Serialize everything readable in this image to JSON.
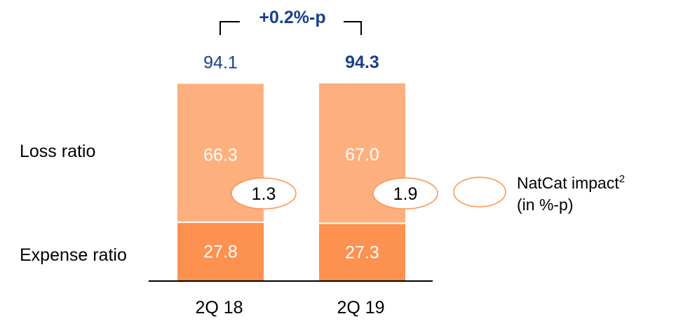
{
  "colors": {
    "loss": "#fdb07e",
    "expense": "#fd9150",
    "accent": "#1a3f8f",
    "ellipse_stroke": "#fd9150"
  },
  "legend": {
    "natcat_line1": "NatCat impact",
    "natcat_sup": "2",
    "natcat_line2": "(in %-p)"
  },
  "chart_data": {
    "type": "bar",
    "stacked": true,
    "categories": [
      "2Q 18",
      "2Q 19"
    ],
    "series": [
      {
        "name": "Expense ratio",
        "values": [
          27.8,
          27.3
        ],
        "labels": [
          "27.8",
          "27.3"
        ]
      },
      {
        "name": "Loss ratio",
        "values": [
          66.3,
          67.0
        ],
        "labels": [
          "66.3",
          "67.0"
        ]
      }
    ],
    "totals": [
      94.1,
      94.3
    ],
    "total_labels": [
      "94.1",
      "94.3"
    ],
    "natcat_impact": [
      "1.3",
      "1.9"
    ],
    "delta_label": "+0.2%-p"
  }
}
